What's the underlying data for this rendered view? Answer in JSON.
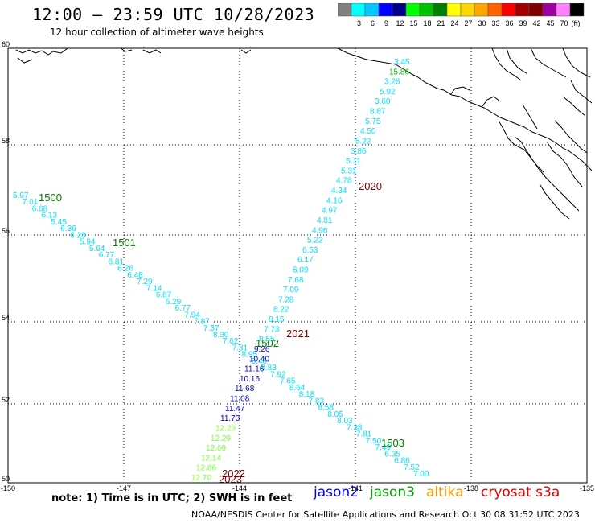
{
  "title": "12:00 – 23:59 UTC 10/28/2023",
  "subtitle": "12 hour collection of altimeter wave heights",
  "legend": {
    "unit": "(ft)",
    "swatches": [
      {
        "label": "",
        "color": "#808080"
      },
      {
        "label": "3",
        "color": "#00ffff"
      },
      {
        "label": "6",
        "color": "#00c8ff"
      },
      {
        "label": "9",
        "color": "#0000ff"
      },
      {
        "label": "12",
        "color": "#00008b"
      },
      {
        "label": "15",
        "color": "#00ff00"
      },
      {
        "label": "18",
        "color": "#00c000"
      },
      {
        "label": "21",
        "color": "#008000"
      },
      {
        "label": "24",
        "color": "#ffff00"
      },
      {
        "label": "27",
        "color": "#ffd700"
      },
      {
        "label": "30",
        "color": "#ffa500"
      },
      {
        "label": "33",
        "color": "#ff6000"
      },
      {
        "label": "36",
        "color": "#ff0000"
      },
      {
        "label": "39",
        "color": "#a00000"
      },
      {
        "label": "42",
        "color": "#800000"
      },
      {
        "label": "45",
        "color": "#a000a0"
      },
      {
        "label": "70",
        "color": "#ff80ff"
      },
      {
        "label": "",
        "color": "#000000"
      }
    ]
  },
  "axes": {
    "lon_ticks": [
      "-150",
      "-147",
      "-144",
      "-141",
      "-138",
      "-135"
    ],
    "lat_ticks": [
      "60",
      "58",
      "56",
      "54",
      "52",
      "50"
    ]
  },
  "passes": [
    {
      "label": "1500",
      "color": "#008000"
    },
    {
      "label": "1501",
      "color": "#008000"
    },
    {
      "label": "1502",
      "color": "#008000"
    },
    {
      "label": "1503",
      "color": "#008000"
    },
    {
      "label": "2020",
      "color": "#800000"
    },
    {
      "label": "2021",
      "color": "#800000"
    },
    {
      "label": "2022",
      "color": "#800000"
    },
    {
      "label": "2023",
      "color": "#800000"
    }
  ],
  "track_descending": [
    {
      "v": "5.97",
      "c": "#00e0ff"
    },
    {
      "v": "7.01",
      "c": "#00e0ff"
    },
    {
      "v": "6.68",
      "c": "#00e0ff"
    },
    {
      "v": "6.13",
      "c": "#00e0ff"
    },
    {
      "v": "5.45",
      "c": "#00e0ff"
    },
    {
      "v": "6.36",
      "c": "#00e0ff"
    },
    {
      "v": "6.28",
      "c": "#00e0ff"
    },
    {
      "v": "5.94",
      "c": "#00e0ff"
    },
    {
      "v": "5.64",
      "c": "#00e0ff"
    },
    {
      "v": "6.77",
      "c": "#00e0ff"
    },
    {
      "v": "6.81",
      "c": "#00e0ff"
    },
    {
      "v": "6.26",
      "c": "#00e0ff"
    },
    {
      "v": "6.48",
      "c": "#00e0ff"
    },
    {
      "v": "7.29",
      "c": "#00e0ff"
    },
    {
      "v": "7.14",
      "c": "#00e0ff"
    },
    {
      "v": "6.87",
      "c": "#00e0ff"
    },
    {
      "v": "6.29",
      "c": "#00e0ff"
    },
    {
      "v": "6.77",
      "c": "#00e0ff"
    },
    {
      "v": "7.94",
      "c": "#00e0ff"
    },
    {
      "v": "7.87",
      "c": "#00e0ff"
    },
    {
      "v": "7.37",
      "c": "#00e0ff"
    },
    {
      "v": "8.30",
      "c": "#00e0ff"
    },
    {
      "v": "7.62",
      "c": "#00e0ff"
    },
    {
      "v": "7.81",
      "c": "#00e0ff"
    },
    {
      "v": "8.95",
      "c": "#00e0ff"
    },
    {
      "v": "8.40",
      "c": "#00e0ff"
    },
    {
      "v": "8.83",
      "c": "#00e0ff"
    },
    {
      "v": "7.92",
      "c": "#00e0ff"
    },
    {
      "v": "7.65",
      "c": "#00e0ff"
    },
    {
      "v": "8.64",
      "c": "#00e0ff"
    },
    {
      "v": "8.18",
      "c": "#00e0ff"
    },
    {
      "v": "7.83",
      "c": "#00e0ff"
    },
    {
      "v": "8.58",
      "c": "#00e0ff"
    },
    {
      "v": "8.05",
      "c": "#00e0ff"
    },
    {
      "v": "8.03",
      "c": "#00e0ff"
    },
    {
      "v": "7.38",
      "c": "#00e0ff"
    },
    {
      "v": "7.81",
      "c": "#00e0ff"
    },
    {
      "v": "7.50",
      "c": "#00e0ff"
    },
    {
      "v": "7.49",
      "c": "#00e0ff"
    },
    {
      "v": "6.35",
      "c": "#00e0ff"
    },
    {
      "v": "6.86",
      "c": "#00e0ff"
    },
    {
      "v": "7.52",
      "c": "#00e0ff"
    },
    {
      "v": "7.00",
      "c": "#00e0ff"
    }
  ],
  "track_ascending": [
    {
      "v": "12.70",
      "c": "#7cff3c"
    },
    {
      "v": "12.86",
      "c": "#7cff3c"
    },
    {
      "v": "12.14",
      "c": "#7cff3c"
    },
    {
      "v": "12.69",
      "c": "#7cff3c"
    },
    {
      "v": "12.29",
      "c": "#7cff3c"
    },
    {
      "v": "12.23",
      "c": "#7cff3c"
    },
    {
      "v": "11.73",
      "c": "#0000c8"
    },
    {
      "v": "11.47",
      "c": "#0000c8"
    },
    {
      "v": "11.08",
      "c": "#0000c8"
    },
    {
      "v": "11.68",
      "c": "#0000c8"
    },
    {
      "v": "10.16",
      "c": "#0000c8"
    },
    {
      "v": "11.16",
      "c": "#0000c8"
    },
    {
      "v": "10.40",
      "c": "#0000c8"
    },
    {
      "v": "9.26",
      "c": "#0000c8"
    },
    {
      "v": "8.55",
      "c": "#00e0ff"
    },
    {
      "v": "7.73",
      "c": "#00e0ff"
    },
    {
      "v": "8.15",
      "c": "#00e0ff"
    },
    {
      "v": "8.22",
      "c": "#00e0ff"
    },
    {
      "v": "7.28",
      "c": "#00e0ff"
    },
    {
      "v": "7.09",
      "c": "#00e0ff"
    },
    {
      "v": "7.68",
      "c": "#00e0ff"
    },
    {
      "v": "6.09",
      "c": "#00e0ff"
    },
    {
      "v": "6.17",
      "c": "#00e0ff"
    },
    {
      "v": "6.53",
      "c": "#00e0ff"
    },
    {
      "v": "5.22",
      "c": "#00e0ff"
    },
    {
      "v": "4.96",
      "c": "#00e0ff"
    },
    {
      "v": "4.81",
      "c": "#00e0ff"
    },
    {
      "v": "4.97",
      "c": "#00e0ff"
    },
    {
      "v": "4.16",
      "c": "#00e0ff"
    },
    {
      "v": "4.34",
      "c": "#00e0ff"
    },
    {
      "v": "4.78",
      "c": "#00e0ff"
    },
    {
      "v": "5.31",
      "c": "#00e0ff"
    },
    {
      "v": "5.11",
      "c": "#00e0ff"
    },
    {
      "v": "3.86",
      "c": "#00e0ff"
    },
    {
      "v": "5.22",
      "c": "#00e0ff"
    },
    {
      "v": "4.50",
      "c": "#00e0ff"
    },
    {
      "v": "5.75",
      "c": "#00e0ff"
    },
    {
      "v": "8.87",
      "c": "#00e0ff"
    },
    {
      "v": "3.60",
      "c": "#00e0ff"
    },
    {
      "v": "5.92",
      "c": "#00e0ff"
    },
    {
      "v": "3.26",
      "c": "#00e0ff"
    },
    {
      "v": "15.86",
      "c": "#00c000"
    },
    {
      "v": "3.45",
      "c": "#00e0ff"
    }
  ],
  "note": "note:  1) Time is in UTC;  2) SWH is in feet",
  "satellites": [
    {
      "name": "jason2",
      "color": "#0000ff"
    },
    {
      "name": "jason3",
      "color": "#00a000"
    },
    {
      "name": "altika",
      "color": "#ff9900"
    },
    {
      "name": "cryosat",
      "color": "#e00000"
    },
    {
      "name": "s3a",
      "color": "#e00000"
    }
  ],
  "footer": "NOAA/NESDIS Center for Satellite Applications and Research    Oct 30 08:31:52 UTC 2023"
}
